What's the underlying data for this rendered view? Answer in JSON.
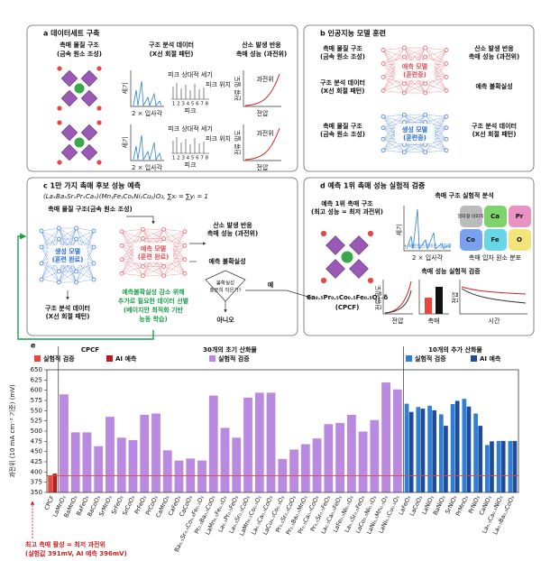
{
  "panels": {
    "a": {
      "title": "a 데이터세트 구축",
      "columns": [
        [
          "촉매 물질 구조",
          "(금속 원소 조성)"
        ],
        [
          "구조 분석 데이터",
          "(X선 회절 패턴)"
        ],
        [
          "산소 발생 반응",
          "촉매 성능 (과전위)"
        ]
      ],
      "xrd_y": "세기",
      "xrd_x": "2 × 입사각",
      "peak_title": "피크 상대적 세기",
      "peak_x": "피크 위치",
      "peak_numbers": "1 2 3 4 5 6 7 8",
      "peak_label": "피크",
      "perf_y": "전류 밀도",
      "perf_x": "전압",
      "perf_mark": "과전위"
    },
    "b": {
      "title": "b 인공지능 모델 훈련",
      "top_inputs": [
        [
          "촉매 물질 구조",
          "(금속 원소 조성)"
        ],
        [
          "구조 분석 데이터",
          "(X선 회절 패턴)"
        ]
      ],
      "top_model": [
        "예측 모델",
        "(훈련중)"
      ],
      "top_outputs": [
        [
          "산소 발생 반응",
          "촉매 성능 (과전위)"
        ],
        [
          "예측 불확실성"
        ]
      ],
      "bottom_input": [
        "촉매 물질 구조",
        "(금속 원소 조성)"
      ],
      "bottom_model": [
        "생성 모델",
        "(훈련중)"
      ],
      "bottom_output": [
        "구조 분석 데이터",
        "(X선 회절 패턴)"
      ]
    },
    "c": {
      "title": "c 1만 가지 촉매 후보 성능 예측",
      "formula": "(LaₓBaₓSrₓPrₓCaₓ)(MnᵧFeᵧCoᵧNiᵧCuᵧ)O₃,  ∑xᵢ = ∑yᵢ = 1",
      "input": "촉매 물질 구조(금속 원소 조성)",
      "generator": [
        "생성 모델",
        "(훈련 완료)"
      ],
      "xrd": [
        "구조 분석 데이터",
        "(X선 회절 패턴)"
      ],
      "predictor": [
        "예측 모델",
        "(훈련 완료)"
      ],
      "output": [
        "산소 발생 반응",
        "촉매 성능 (과전위)"
      ],
      "uncertainty": "예측 불확실성",
      "decision": [
        "불확실성",
        "충분히 작은가?"
      ],
      "yes": "예",
      "no": "아니오",
      "active_learning": [
        "예측불확실성 감소 위해",
        "추가로 필요한 데이터 선별",
        "(베이지안 최적화 기반",
        "능동 학습)"
      ]
    },
    "d": {
      "title": "d 예측 1위 촉매 성능 실험적 검증",
      "best": [
        "예측 1위 촉매 구조",
        "(최고 성능 = 최저 과전위)"
      ],
      "formula": "Ca₀.₅Pr₀.₅Co₀.₅Fe₀.₅O₃₋δ",
      "abbr": "(CPCF)",
      "structure_title": "촉매 구조 실험적 분석",
      "xrd_y": "세기",
      "xrd_legend": "+ 페로브스카이트 산화물",
      "xrd_x": "2 × 입사각",
      "micro": "현미경 이미지",
      "elements": [
        "Ca",
        "Pr",
        "Co",
        "Fe",
        "O"
      ],
      "map_title": "촉매 입자 원소 분포",
      "perf_title": "촉매 성능 실험적 검증",
      "perf_y": "전류 밀도",
      "perf_x": "전압",
      "bar_x": "촉매",
      "stab_y": "전압",
      "stab_x": "시간"
    }
  },
  "chart_data": {
    "type": "bar",
    "panel": "e",
    "ylabel": "과전위 (10 mA cm⁻² 기준) (mV)",
    "ylim": [
      350,
      650
    ],
    "yticks": [
      350,
      375,
      400,
      425,
      450,
      475,
      500,
      525,
      550,
      575,
      600,
      625,
      650
    ],
    "groups": [
      {
        "title": "CPCF",
        "categories": [
          "CPCF"
        ],
        "series": [
          {
            "name": "실험적 검증",
            "color": "#e8453c",
            "values": [
              391
            ]
          },
          {
            "name": "AI 예측",
            "color": "#b71c1c",
            "values": [
              396
            ]
          }
        ]
      },
      {
        "title": "30개의 초기 산화물",
        "categories": [
          "LaMnO₃",
          "BaMnO₃",
          "BaFeO₃",
          "BaCoO₃",
          "SrMnO₃",
          "SrFeO₃",
          "SrCoO₃",
          "PrFeO₃",
          "PrCoO₃",
          "CaMnO₃",
          "CaFeO₃",
          "CaCoO₃",
          "Ba₀.₅Sr₀.₅Co₀.₈Fe₀.₂O₃",
          "Pr₀.₅Ba₀.₅CoO₃",
          "LaMn₀.₅Fe₀.₅O₃",
          "La₀.₅Pr₀.₅FeO₃",
          "La₀.₅Sr₀.₅CoO₃",
          "LaMn₀.₅Co₀.₅O₃",
          "La₀.₅Ca₀.₅CoO₃",
          "LaCu₀.₅Co₀.₅O₃",
          "Pr₀.₅Sr₀.₅CoO₃",
          "Pr₀.₅Ba₀.₅MnO₃",
          "Pr₀.₅Ca₀.₅CoO₃",
          "Pr₀.₅Sr₀.₅FeO₃",
          "La₀.₅Ca₀.₅FeO₃",
          "LaFe₀.₅Ni₀.₅O₃",
          "La₀.₅Sr₀.₅FeO₃",
          "LaCo₀.₅Ni₀.₅O₃",
          "LaNi₀.₅Mn₀.₅O₃",
          "LaNi₀.₅Cu₀.₅O₃"
        ],
        "series": [
          {
            "name": "실험적 검증",
            "color": "#b98ae0",
            "values": [
              590,
              497,
              497,
              463,
              535,
              484,
              478,
              540,
              543,
              453,
              428,
              433,
              428,
              587,
              508,
              484,
              582,
              594,
              594,
              432,
              455,
              468,
              482,
              517,
              520,
              540,
              499,
              527,
              619,
              602
            ]
          }
        ]
      },
      {
        "title": "10개의 추가 산화물",
        "categories": [
          "LaFeO₃",
          "LaCoO₃",
          "LaNiO₃",
          "BaNiO₃",
          "SrNiO₃",
          "PrMnO₃",
          "PrNiO₃",
          "CaNiO₃",
          "La₀.₅Ca₀.₅NiO₃",
          "La₀.₅Ba₀.₅CoO₃"
        ],
        "series": [
          {
            "name": "실험적 검증",
            "color": "#2e7fd6",
            "values": [
              567,
              559,
              562,
              541,
              566,
              579,
              543,
              466,
              476,
              476
            ]
          },
          {
            "name": "AI 예측",
            "color": "#1f4b99",
            "values": [
              547,
              555,
              551,
              513,
              574,
              560,
              513,
              475,
              476,
              476
            ]
          }
        ]
      }
    ],
    "annotation": [
      "최고 촉매 활성 = 최저 과전위",
      "(실험값 391mV, AI 예측 396mV)"
    ]
  }
}
